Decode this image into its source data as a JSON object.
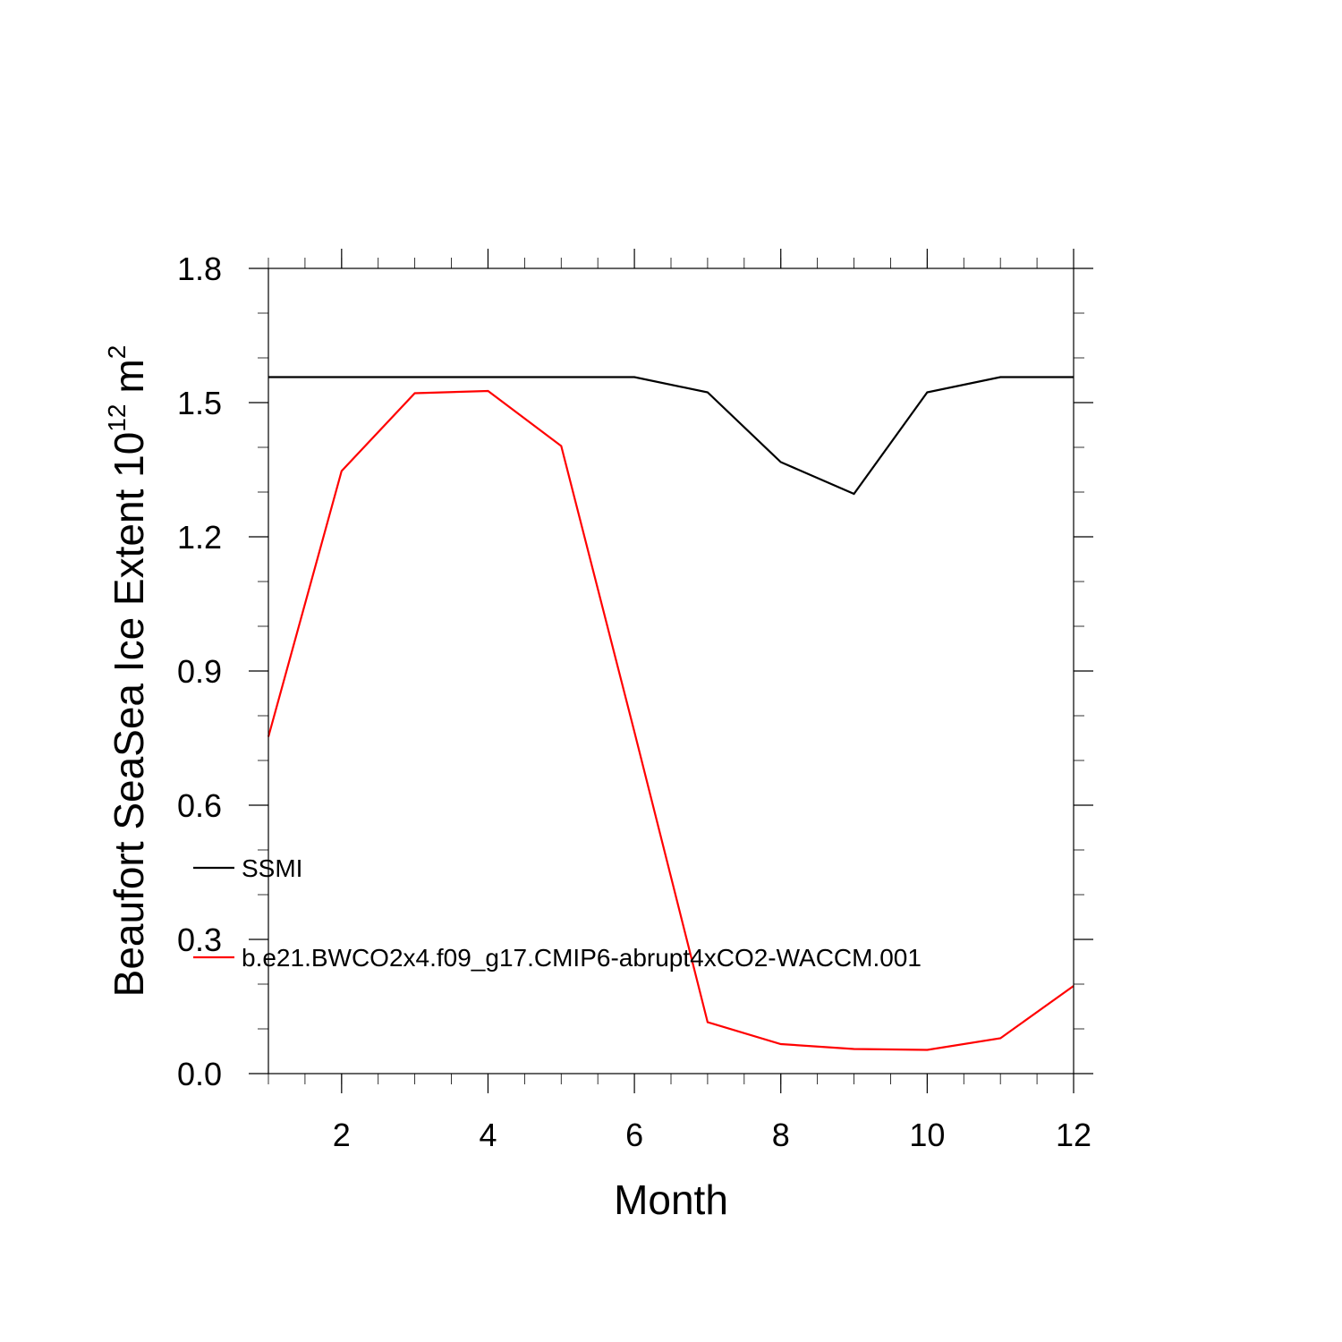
{
  "chart_data": {
    "type": "line",
    "xlabel": "Month",
    "ylabel": "Beaufort SeaSea Ice Extent 10",
    "ylabel_superscript": "12",
    "ylabel_unit": "m",
    "ylabel_unit_superscript": "2",
    "xlim": [
      1,
      12
    ],
    "ylim": [
      0.0,
      1.8
    ],
    "xticks": [
      2,
      4,
      6,
      8,
      10,
      12
    ],
    "xtick_labels": [
      "2",
      "4",
      "6",
      "8",
      "10",
      "12"
    ],
    "yticks": [
      0.0,
      0.3,
      0.6,
      0.9,
      1.2,
      1.5,
      1.8
    ],
    "ytick_labels": [
      "0.0",
      "0.3",
      "0.6",
      "0.9",
      "1.2",
      "1.5",
      "1.8"
    ],
    "x": [
      1,
      2,
      3,
      4,
      5,
      6,
      7,
      8,
      9,
      10,
      11,
      12
    ],
    "series": [
      {
        "name": "SSMI",
        "color": "#000000",
        "values": [
          1.557,
          1.557,
          1.557,
          1.557,
          1.557,
          1.557,
          1.523,
          1.367,
          1.296,
          1.523,
          1.557,
          1.557
        ]
      },
      {
        "name": "b.e21.BWCO2x4.f09_g17.CMIP6-abrupt4xCO2-WACCM.001",
        "color": "#ff0000",
        "values": [
          0.753,
          1.347,
          1.521,
          1.526,
          1.403,
          0.764,
          0.115,
          0.066,
          0.055,
          0.053,
          0.079,
          0.196
        ]
      }
    ],
    "legend": "inside-left",
    "grid": false
  }
}
